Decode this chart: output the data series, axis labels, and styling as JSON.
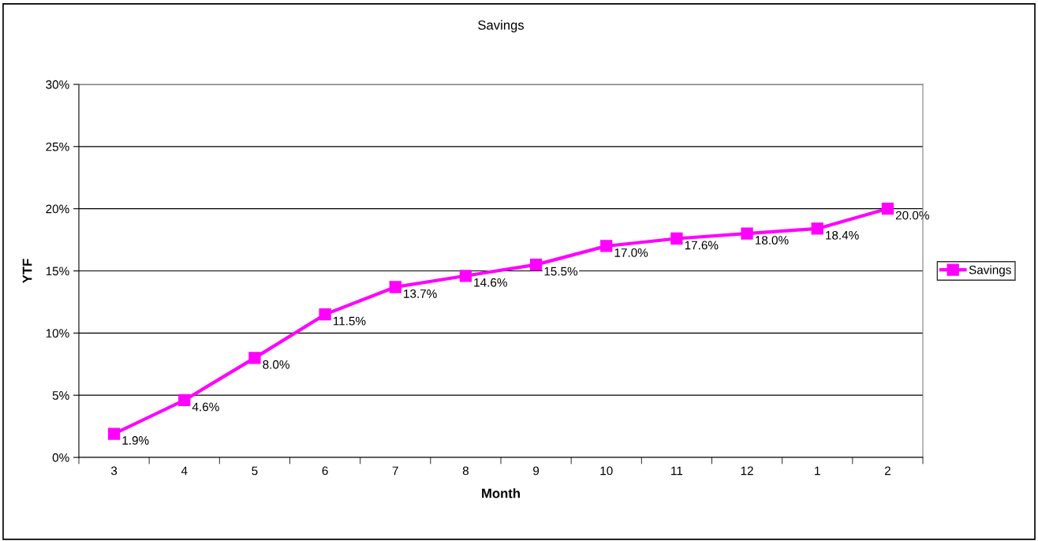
{
  "chart_data": {
    "type": "line",
    "title": "Savings",
    "xlabel": "Month",
    "ylabel": "YTF",
    "categories": [
      "3",
      "4",
      "5",
      "6",
      "7",
      "8",
      "9",
      "10",
      "11",
      "12",
      "1",
      "2"
    ],
    "series": [
      {
        "name": "Savings",
        "color": "#ff00ff",
        "values": [
          1.9,
          4.6,
          8.0,
          11.5,
          13.7,
          14.6,
          15.5,
          17.0,
          17.6,
          18.0,
          18.4,
          20.0
        ],
        "value_labels": [
          "1.9%",
          "4.6%",
          "8.0%",
          "11.5%",
          "13.7%",
          "14.6%",
          "15.5%",
          "17.0%",
          "17.6%",
          "18.0%",
          "18.4%",
          "20.0%"
        ]
      }
    ],
    "ylim": [
      0,
      30
    ],
    "yticks": [
      {
        "value": 0,
        "label": "0%"
      },
      {
        "value": 5,
        "label": "5%"
      },
      {
        "value": 10,
        "label": "10%"
      },
      {
        "value": 15,
        "label": "15%"
      },
      {
        "value": 20,
        "label": "20%"
      },
      {
        "value": 25,
        "label": "25%"
      },
      {
        "value": 30,
        "label": "30%"
      }
    ],
    "grid": "y",
    "legend": "right",
    "marker": "square",
    "line_style": "solid"
  }
}
